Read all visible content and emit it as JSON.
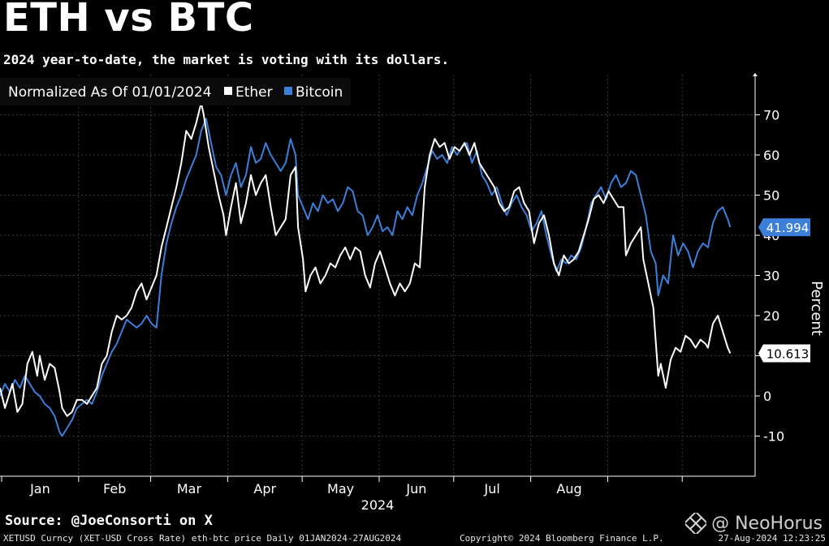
{
  "title": "ETH vs BTC",
  "subtitle": "2024 year-to-date, the market is voting with its dollars.",
  "source": "Source: @JoeConsorti on X",
  "footer": {
    "left": "XETUSD Curncy (XET-USD Cross Rate) eth-btc price  Daily 01JAN2024-27AUG2024",
    "center": "Copyright© 2024 Bloomberg Finance L.P.",
    "right": "27-Aug-2024 12:23:25"
  },
  "watermark": {
    "text": "@ NeoHorus",
    "icon": "neohorus-logo-icon"
  },
  "chart_data": {
    "type": "line",
    "legend": {
      "title": "Normalized As Of 01/01/2024",
      "placement": "top-left"
    },
    "xlabel": "2024",
    "ylabel": "Percent",
    "x_ticks": [
      "Jan",
      "Feb",
      "Mar",
      "Apr",
      "May",
      "Jun",
      "Jul",
      "Aug"
    ],
    "y_ticks": [
      -10,
      0,
      10,
      20,
      30,
      40,
      50,
      60,
      70
    ],
    "ylim": [
      -20,
      80
    ],
    "xlim_days": [
      0,
      244
    ],
    "grid": true,
    "colors": {
      "ether": "#ffffff",
      "bitcoin": "#3c7fd8",
      "grid": "#3a3a3a"
    },
    "series": [
      {
        "name": "Ether",
        "key": "ether",
        "last_value": "10.613",
        "points": [
          [
            0,
            2
          ],
          [
            2,
            -3
          ],
          [
            5,
            3
          ],
          [
            7,
            -4
          ],
          [
            9,
            -2
          ],
          [
            11,
            8
          ],
          [
            13,
            11
          ],
          [
            15,
            5
          ],
          [
            16,
            10
          ],
          [
            18,
            4
          ],
          [
            20,
            8
          ],
          [
            22,
            7
          ],
          [
            24,
            1
          ],
          [
            25,
            -3
          ],
          [
            27,
            -5
          ],
          [
            29,
            -4
          ],
          [
            31,
            -1
          ],
          [
            33,
            -1
          ],
          [
            35,
            -2
          ],
          [
            37,
            0
          ],
          [
            39,
            2
          ],
          [
            41,
            8
          ],
          [
            43,
            10
          ],
          [
            45,
            16
          ],
          [
            47,
            20
          ],
          [
            49,
            19
          ],
          [
            51,
            20
          ],
          [
            53,
            22
          ],
          [
            55,
            26
          ],
          [
            57,
            28
          ],
          [
            59,
            24
          ],
          [
            61,
            27
          ],
          [
            63,
            30
          ],
          [
            65,
            37
          ],
          [
            67,
            42
          ],
          [
            69,
            47
          ],
          [
            71,
            52
          ],
          [
            73,
            58
          ],
          [
            75,
            66
          ],
          [
            77,
            64
          ],
          [
            79,
            68
          ],
          [
            81,
            73
          ],
          [
            82,
            70
          ],
          [
            84,
            62
          ],
          [
            86,
            56
          ],
          [
            88,
            50
          ],
          [
            90,
            45
          ],
          [
            91,
            40
          ],
          [
            93,
            47
          ],
          [
            95,
            53
          ],
          [
            97,
            43
          ],
          [
            99,
            48
          ],
          [
            101,
            55
          ],
          [
            103,
            50
          ],
          [
            105,
            53
          ],
          [
            107,
            55
          ],
          [
            109,
            47
          ],
          [
            111,
            40
          ],
          [
            113,
            42
          ],
          [
            115,
            44
          ],
          [
            117,
            55
          ],
          [
            119,
            57
          ],
          [
            120,
            42
          ],
          [
            122,
            34
          ],
          [
            123,
            26
          ],
          [
            125,
            30
          ],
          [
            127,
            32
          ],
          [
            129,
            28
          ],
          [
            131,
            30
          ],
          [
            133,
            33
          ],
          [
            135,
            32
          ],
          [
            137,
            35
          ],
          [
            139,
            37
          ],
          [
            141,
            34
          ],
          [
            143,
            37
          ],
          [
            145,
            36
          ],
          [
            147,
            30
          ],
          [
            149,
            27
          ],
          [
            151,
            33
          ],
          [
            153,
            36
          ],
          [
            155,
            32
          ],
          [
            157,
            28
          ],
          [
            159,
            25
          ],
          [
            161,
            28
          ],
          [
            163,
            26
          ],
          [
            165,
            28
          ],
          [
            167,
            33
          ],
          [
            169,
            32
          ],
          [
            171,
            52
          ],
          [
            173,
            60
          ],
          [
            175,
            64
          ],
          [
            177,
            62
          ],
          [
            179,
            63
          ],
          [
            181,
            59
          ],
          [
            183,
            62
          ],
          [
            185,
            61
          ],
          [
            187,
            63
          ],
          [
            189,
            60
          ],
          [
            191,
            63
          ],
          [
            193,
            58
          ],
          [
            195,
            56
          ],
          [
            197,
            54
          ],
          [
            199,
            52
          ],
          [
            201,
            48
          ],
          [
            203,
            46
          ],
          [
            205,
            47
          ],
          [
            207,
            51
          ],
          [
            209,
            52
          ],
          [
            211,
            48
          ],
          [
            213,
            46
          ],
          [
            215,
            38
          ],
          [
            217,
            43
          ],
          [
            219,
            45
          ],
          [
            221,
            40
          ],
          [
            223,
            33
          ],
          [
            225,
            30
          ],
          [
            227,
            35
          ],
          [
            229,
            33
          ],
          [
            231,
            34
          ],
          [
            233,
            36
          ],
          [
            235,
            40
          ],
          [
            237,
            44
          ],
          [
            239,
            49
          ],
          [
            241,
            50
          ],
          [
            243,
            48
          ],
          [
            245,
            51
          ],
          [
            247,
            49
          ],
          [
            249,
            47
          ],
          [
            251,
            47
          ],
          [
            252,
            35
          ],
          [
            254,
            38
          ],
          [
            256,
            40
          ],
          [
            258,
            42
          ],
          [
            259,
            34
          ],
          [
            261,
            28
          ],
          [
            263,
            22
          ],
          [
            265,
            5
          ],
          [
            266,
            8
          ],
          [
            268,
            2
          ],
          [
            270,
            9
          ],
          [
            272,
            12
          ],
          [
            274,
            11
          ],
          [
            276,
            15
          ],
          [
            278,
            14
          ],
          [
            280,
            12
          ],
          [
            282,
            14
          ],
          [
            284,
            13
          ],
          [
            285,
            12
          ],
          [
            287,
            18
          ],
          [
            289,
            20
          ],
          [
            291,
            16
          ],
          [
            293,
            12
          ],
          [
            294,
            10.613
          ]
        ]
      },
      {
        "name": "Bitcoin",
        "key": "bitcoin",
        "last_value": "41.994",
        "points": [
          [
            0,
            0
          ],
          [
            2,
            3
          ],
          [
            4,
            1
          ],
          [
            6,
            4
          ],
          [
            8,
            2
          ],
          [
            10,
            5
          ],
          [
            12,
            3
          ],
          [
            14,
            1
          ],
          [
            16,
            0
          ],
          [
            18,
            -2
          ],
          [
            20,
            -3
          ],
          [
            22,
            -5
          ],
          [
            24,
            -9
          ],
          [
            25,
            -10
          ],
          [
            27,
            -8
          ],
          [
            29,
            -6
          ],
          [
            31,
            -3
          ],
          [
            33,
            -2
          ],
          [
            35,
            -1
          ],
          [
            37,
            -2
          ],
          [
            39,
            1
          ],
          [
            41,
            5
          ],
          [
            43,
            8
          ],
          [
            45,
            11
          ],
          [
            47,
            13
          ],
          [
            49,
            16
          ],
          [
            51,
            19
          ],
          [
            53,
            18
          ],
          [
            55,
            17
          ],
          [
            57,
            18
          ],
          [
            59,
            20
          ],
          [
            61,
            18
          ],
          [
            63,
            17
          ],
          [
            65,
            30
          ],
          [
            67,
            38
          ],
          [
            69,
            43
          ],
          [
            71,
            47
          ],
          [
            73,
            50
          ],
          [
            75,
            54
          ],
          [
            77,
            57
          ],
          [
            79,
            60
          ],
          [
            81,
            66
          ],
          [
            83,
            69
          ],
          [
            85,
            63
          ],
          [
            87,
            57
          ],
          [
            89,
            55
          ],
          [
            91,
            50
          ],
          [
            93,
            55
          ],
          [
            95,
            58
          ],
          [
            97,
            52
          ],
          [
            99,
            55
          ],
          [
            101,
            62
          ],
          [
            103,
            58
          ],
          [
            105,
            59
          ],
          [
            107,
            63
          ],
          [
            109,
            60
          ],
          [
            111,
            58
          ],
          [
            113,
            56
          ],
          [
            115,
            58
          ],
          [
            117,
            64
          ],
          [
            119,
            60
          ],
          [
            120,
            50
          ],
          [
            122,
            47
          ],
          [
            124,
            44
          ],
          [
            126,
            48
          ],
          [
            128,
            46
          ],
          [
            130,
            50
          ],
          [
            132,
            48
          ],
          [
            134,
            49
          ],
          [
            136,
            46
          ],
          [
            138,
            48
          ],
          [
            140,
            52
          ],
          [
            142,
            51
          ],
          [
            144,
            46
          ],
          [
            146,
            45
          ],
          [
            148,
            40
          ],
          [
            150,
            42
          ],
          [
            152,
            45
          ],
          [
            154,
            41
          ],
          [
            156,
            42
          ],
          [
            158,
            40
          ],
          [
            160,
            46
          ],
          [
            162,
            44
          ],
          [
            164,
            47
          ],
          [
            166,
            45
          ],
          [
            168,
            50
          ],
          [
            170,
            53
          ],
          [
            172,
            57
          ],
          [
            174,
            61
          ],
          [
            176,
            59
          ],
          [
            178,
            60
          ],
          [
            180,
            58
          ],
          [
            182,
            62
          ],
          [
            184,
            60
          ],
          [
            186,
            62
          ],
          [
            188,
            63
          ],
          [
            190,
            58
          ],
          [
            192,
            61
          ],
          [
            194,
            55
          ],
          [
            196,
            53
          ],
          [
            198,
            50
          ],
          [
            200,
            52
          ],
          [
            202,
            48
          ],
          [
            204,
            45
          ],
          [
            206,
            48
          ],
          [
            208,
            50
          ],
          [
            210,
            47
          ],
          [
            212,
            45
          ],
          [
            214,
            41
          ],
          [
            216,
            43
          ],
          [
            218,
            46
          ],
          [
            220,
            40
          ],
          [
            222,
            35
          ],
          [
            224,
            31
          ],
          [
            226,
            34
          ],
          [
            228,
            33
          ],
          [
            230,
            35
          ],
          [
            232,
            34
          ],
          [
            234,
            37
          ],
          [
            236,
            42
          ],
          [
            238,
            48
          ],
          [
            240,
            50
          ],
          [
            242,
            52
          ],
          [
            244,
            49
          ],
          [
            246,
            53
          ],
          [
            248,
            55
          ],
          [
            250,
            52
          ],
          [
            252,
            53
          ],
          [
            254,
            56
          ],
          [
            256,
            55
          ],
          [
            258,
            50
          ],
          [
            260,
            45
          ],
          [
            262,
            36
          ],
          [
            264,
            33
          ],
          [
            265,
            25
          ],
          [
            267,
            30
          ],
          [
            269,
            28
          ],
          [
            271,
            40
          ],
          [
            273,
            35
          ],
          [
            275,
            38
          ],
          [
            277,
            36
          ],
          [
            279,
            32
          ],
          [
            281,
            36
          ],
          [
            283,
            38
          ],
          [
            285,
            37
          ],
          [
            287,
            43
          ],
          [
            289,
            46
          ],
          [
            291,
            47
          ],
          [
            293,
            44
          ],
          [
            294,
            41.994
          ]
        ]
      }
    ]
  }
}
